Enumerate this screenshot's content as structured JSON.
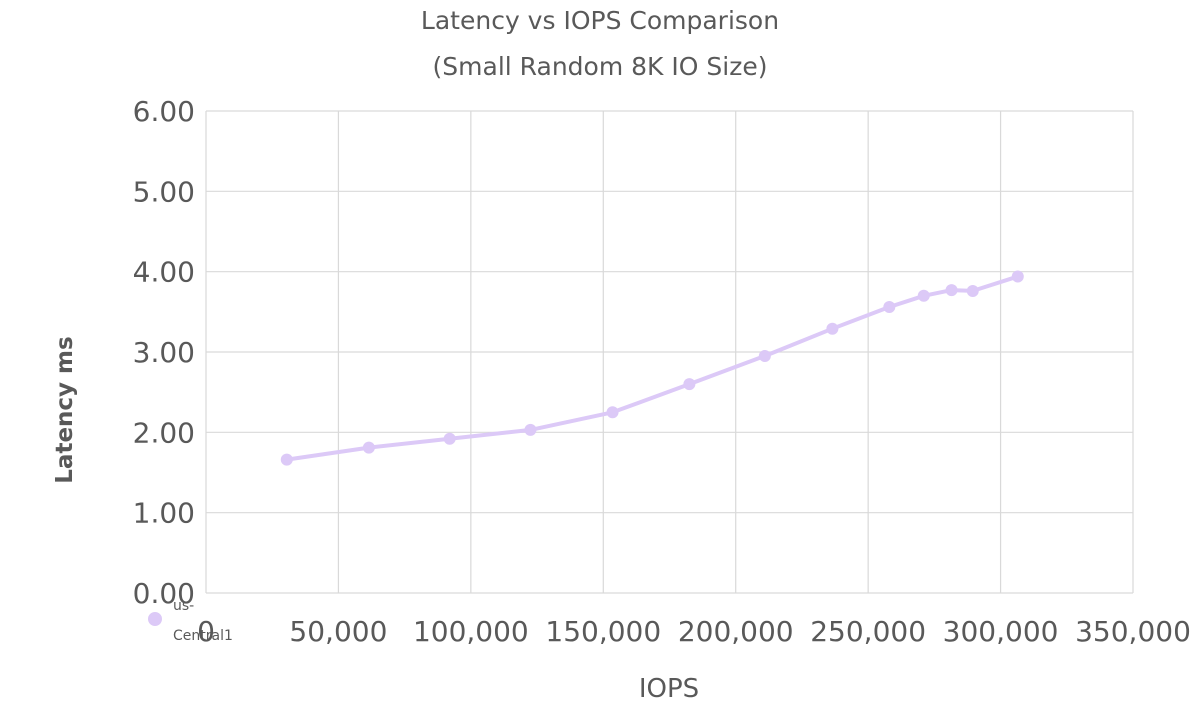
{
  "chart_data": {
    "type": "line",
    "title": "Latency vs IOPS Comparison",
    "subtitle": "(Small Random 8K IO Size)",
    "xlabel": "IOPS",
    "ylabel": "Latency ms",
    "xlim": [
      0,
      350000
    ],
    "ylim": [
      0,
      6
    ],
    "x_ticks": [
      "0",
      "50,000",
      "100,000",
      "150,000",
      "200,000",
      "250,000",
      "300,000",
      "350,000"
    ],
    "y_ticks": [
      "0.00",
      "1.00",
      "2.00",
      "3.00",
      "4.00",
      "5.00",
      "6.00"
    ],
    "grid": true,
    "legend_position": "bottom-left",
    "series": [
      {
        "name": "us-Central1",
        "color": "#dcc9f7",
        "x": [
          30500,
          61500,
          92000,
          122500,
          153500,
          182500,
          211000,
          236500,
          258000,
          271000,
          281500,
          289500,
          306500
        ],
        "y": [
          1.66,
          1.81,
          1.92,
          2.03,
          2.25,
          2.6,
          2.95,
          3.29,
          3.56,
          3.7,
          3.77,
          3.76,
          3.94
        ]
      }
    ]
  }
}
